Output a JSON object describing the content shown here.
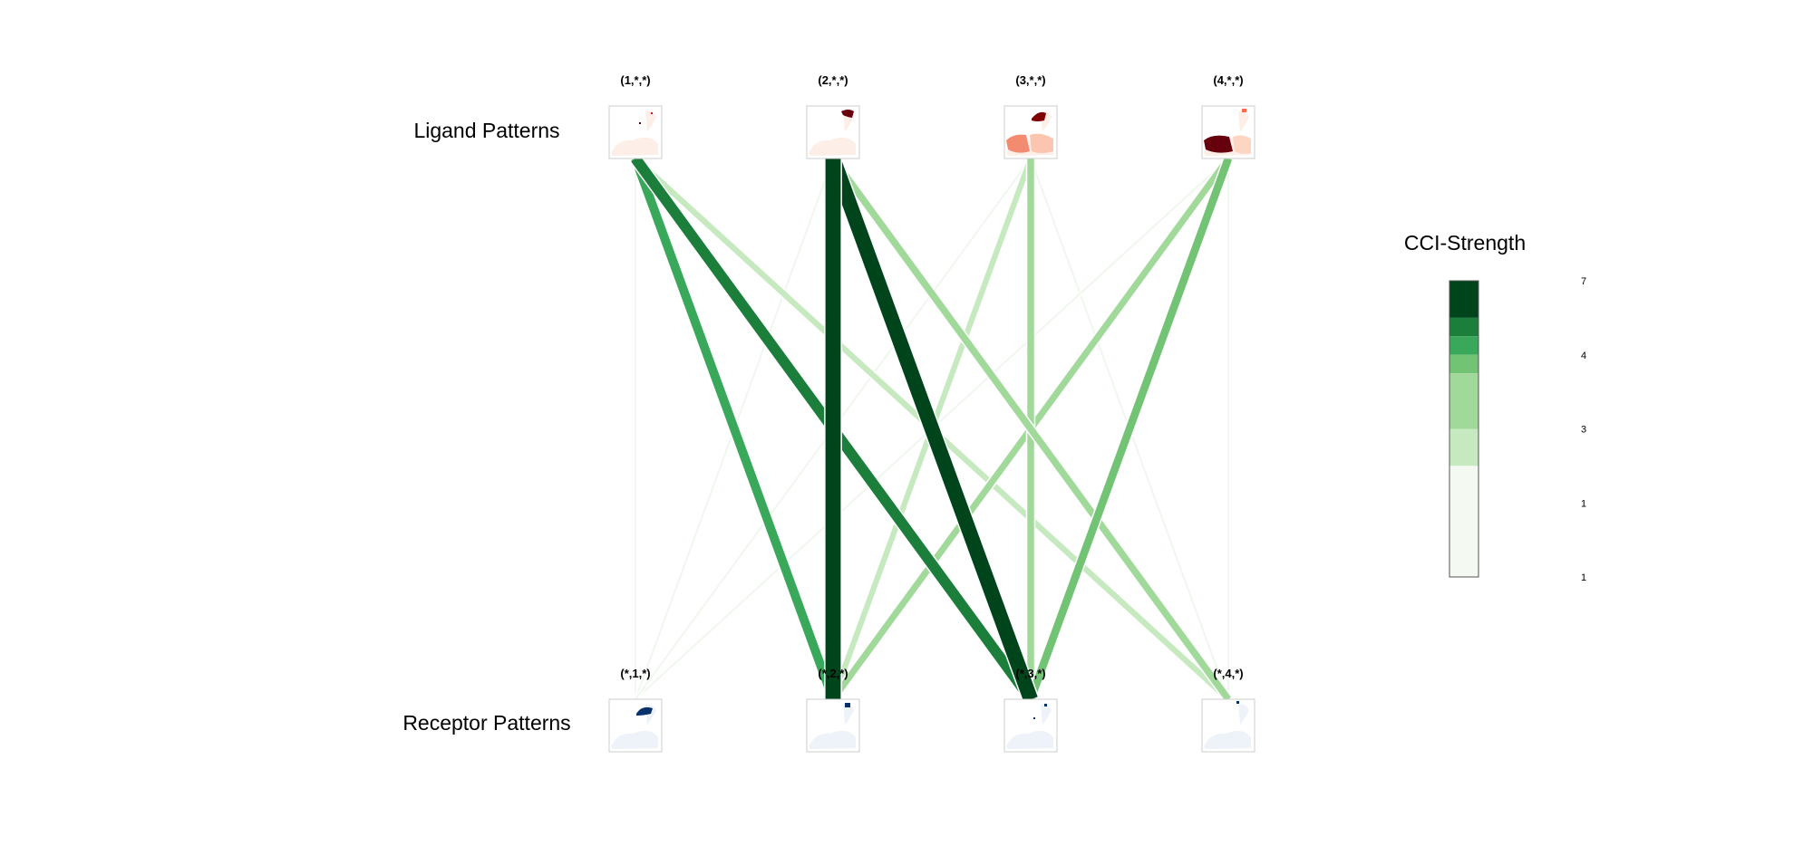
{
  "chart_data": {
    "type": "network",
    "row_labels": {
      "ligand": "Ligand Patterns",
      "receptor": "Receptor Patterns"
    },
    "ligand_nodes": [
      "(1,*,*)",
      "(2,*,*)",
      "(3,*,*)",
      "(4,*,*)"
    ],
    "receptor_nodes": [
      "(*,1,*)",
      "(*,2,*)",
      "(*,3,*)",
      "(*,4,*)"
    ],
    "ligand_pattern_color": "#67000d",
    "receptor_pattern_color": "#08306b",
    "edges": [
      {
        "from": 0,
        "to": 0,
        "strength": 0.8
      },
      {
        "from": 0,
        "to": 1,
        "strength": 4.1
      },
      {
        "from": 0,
        "to": 2,
        "strength": 4.9
      },
      {
        "from": 0,
        "to": 3,
        "strength": 2.7
      },
      {
        "from": 1,
        "to": 0,
        "strength": 0.8
      },
      {
        "from": 1,
        "to": 1,
        "strength": 7.0
      },
      {
        "from": 1,
        "to": 2,
        "strength": 6.8
      },
      {
        "from": 1,
        "to": 3,
        "strength": 3.2
      },
      {
        "from": 2,
        "to": 0,
        "strength": 0.9
      },
      {
        "from": 2,
        "to": 1,
        "strength": 2.6
      },
      {
        "from": 2,
        "to": 2,
        "strength": 3.1
      },
      {
        "from": 2,
        "to": 3,
        "strength": 0.8
      },
      {
        "from": 3,
        "to": 0,
        "strength": 0.8
      },
      {
        "from": 3,
        "to": 1,
        "strength": 3.0
      },
      {
        "from": 3,
        "to": 2,
        "strength": 3.6
      },
      {
        "from": 3,
        "to": 3,
        "strength": 0.8
      }
    ],
    "legend": {
      "title": "CCI-Strength",
      "tick_labels": [
        "7",
        "4",
        "3",
        "1",
        "1"
      ],
      "color_bins": [
        "#00441b",
        "#1b7f3b",
        "#39a85a",
        "#72c474",
        "#a1d99b",
        "#c7e9c0",
        "#f4faf2"
      ],
      "bin_weights": [
        2,
        1,
        1,
        1,
        3,
        2,
        6
      ]
    }
  }
}
